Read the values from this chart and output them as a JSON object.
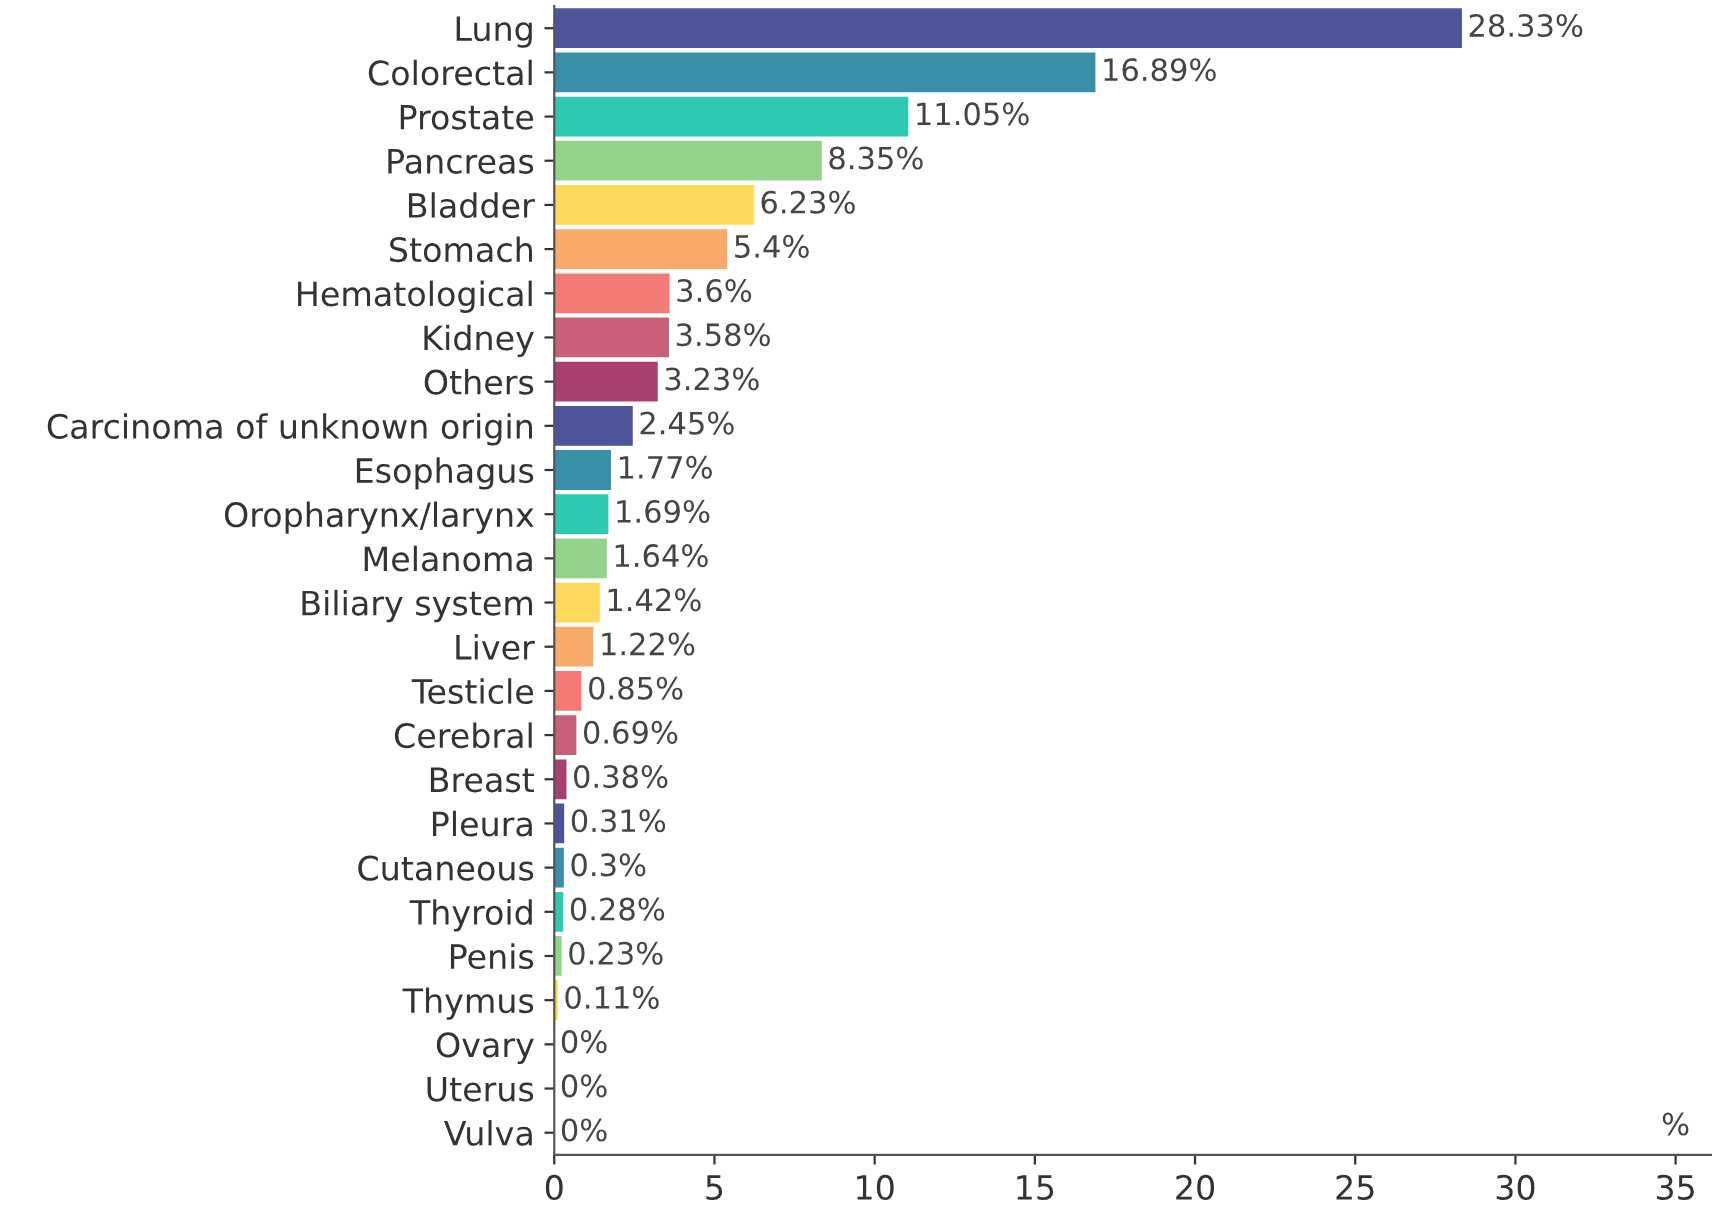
{
  "chart_data": {
    "type": "bar",
    "orientation": "horizontal",
    "xlabel": "%",
    "categories": [
      "Lung",
      "Colorectal",
      "Prostate",
      "Pancreas",
      "Bladder",
      "Stomach",
      "Hematological",
      "Kidney",
      "Others",
      "Carcinoma of unknown origin",
      "Esophagus",
      "Oropharynx/larynx",
      "Melanoma",
      "Biliary system",
      "Liver",
      "Testicle",
      "Cerebral",
      "Breast",
      "Pleura",
      "Cutaneous",
      "Thyroid",
      "Penis",
      "Thymus",
      "Ovary",
      "Uterus",
      "Vulva"
    ],
    "values": [
      28.33,
      16.89,
      11.05,
      8.35,
      6.23,
      5.4,
      3.6,
      3.58,
      3.23,
      2.45,
      1.77,
      1.69,
      1.64,
      1.42,
      1.22,
      0.85,
      0.69,
      0.38,
      0.31,
      0.3,
      0.28,
      0.23,
      0.11,
      0,
      0,
      0
    ],
    "value_labels": [
      "28.33%",
      "16.89%",
      "11.05%",
      "8.35%",
      "6.23%",
      "5.4%",
      "3.6%",
      "3.58%",
      "3.23%",
      "2.45%",
      "1.77%",
      "1.69%",
      "1.64%",
      "1.42%",
      "1.22%",
      "0.85%",
      "0.69%",
      "0.38%",
      "0.31%",
      "0.3%",
      "0.28%",
      "0.23%",
      "0.11%",
      "0%",
      "0%",
      "0%"
    ],
    "colors": [
      "#4d5499",
      "#3a8fa8",
      "#2ec9b3",
      "#93d48a",
      "#fcd95b",
      "#f7aa6a",
      "#f47a76",
      "#c9607a",
      "#a8416f",
      "#4d5499",
      "#3a8fa8",
      "#2ec9b3",
      "#93d48a",
      "#fcd95b",
      "#f7aa6a",
      "#f47a76",
      "#c9607a",
      "#a8416f",
      "#4d5499",
      "#3a8fa8",
      "#2ec9b3",
      "#93d48a",
      "#fcd95b",
      null,
      null,
      null
    ],
    "xlim": [
      0,
      36.1
    ],
    "xticks": [
      0,
      5,
      10,
      15,
      20,
      25,
      30,
      35
    ],
    "grid": false,
    "legend": false
  }
}
